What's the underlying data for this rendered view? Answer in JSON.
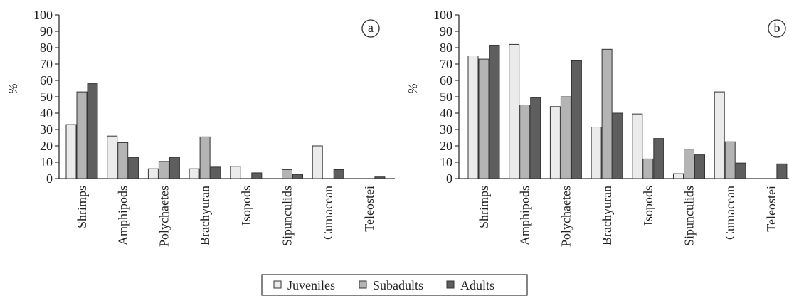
{
  "chart_data": [
    {
      "type": "bar",
      "panel_label": "a",
      "ylabel": "%",
      "ylim": [
        0,
        100
      ],
      "yticks": [
        0,
        10,
        20,
        30,
        40,
        50,
        60,
        70,
        80,
        90,
        100
      ],
      "grid": false,
      "categories": [
        "Shrimps",
        "Amphipods",
        "Polychaetes",
        "Brachyuran",
        "Isopods",
        "Sipunculids",
        "Cumacean",
        "Teleostei"
      ],
      "series": [
        {
          "name": "Juveniles",
          "color": "#ebebeb",
          "values": [
            33,
            26,
            6,
            6,
            7.5,
            0,
            20,
            0
          ]
        },
        {
          "name": "Subadults",
          "color": "#b4b4b4",
          "values": [
            53,
            22,
            10.5,
            25.5,
            0,
            5.5,
            0,
            0
          ]
        },
        {
          "name": "Adults",
          "color": "#5e5e5e",
          "values": [
            58,
            13,
            13,
            7,
            3.5,
            2.5,
            5.5,
            1
          ]
        }
      ]
    },
    {
      "type": "bar",
      "panel_label": "b",
      "ylabel": "%",
      "ylim": [
        0,
        100
      ],
      "yticks": [
        0,
        10,
        20,
        30,
        40,
        50,
        60,
        70,
        80,
        90,
        100
      ],
      "grid": false,
      "categories": [
        "Shrimps",
        "Amphipods",
        "Polychaetes",
        "Brachyuran",
        "Isopods",
        "Sipunculids",
        "Cumacean",
        "Teleostei"
      ],
      "series": [
        {
          "name": "Juveniles",
          "color": "#ebebeb",
          "values": [
            75,
            82,
            44,
            31.5,
            39.5,
            3,
            53,
            0
          ]
        },
        {
          "name": "Subadults",
          "color": "#b4b4b4",
          "values": [
            73,
            45,
            50,
            79,
            12,
            18,
            22.5,
            0
          ]
        },
        {
          "name": "Adults",
          "color": "#5e5e5e",
          "values": [
            81.5,
            49.5,
            72,
            40,
            24.5,
            14.5,
            9.5,
            9
          ]
        }
      ]
    }
  ],
  "legend": {
    "placement": "bottom-center",
    "items": [
      {
        "label": "Juveniles",
        "color": "#ebebeb"
      },
      {
        "label": "Subadults",
        "color": "#b4b4b4"
      },
      {
        "label": "Adults",
        "color": "#5e5e5e"
      }
    ]
  }
}
